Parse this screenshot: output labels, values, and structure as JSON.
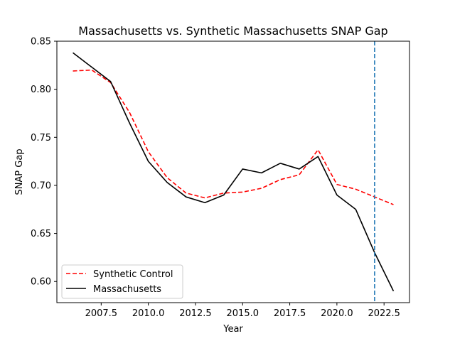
{
  "chart_data": {
    "type": "line",
    "title": "Massachusetts vs. Synthetic Massachusetts SNAP Gap",
    "xlabel": "Year",
    "ylabel": "SNAP Gap",
    "xlim": [
      2005.15,
      2023.85
    ],
    "ylim": [
      0.578,
      0.85
    ],
    "xticks": [
      2007.5,
      2010.0,
      2012.5,
      2015.0,
      2017.5,
      2020.0,
      2022.5
    ],
    "xtick_labels": [
      "2007.5",
      "2010.0",
      "2012.5",
      "2015.0",
      "2017.5",
      "2020.0",
      "2022.5"
    ],
    "yticks": [
      0.6,
      0.65,
      0.7,
      0.75,
      0.8,
      0.85
    ],
    "ytick_labels": [
      "0.60",
      "0.65",
      "0.70",
      "0.75",
      "0.80",
      "0.85"
    ],
    "grid": false,
    "legend_position": "lower-left",
    "vline": {
      "x": 2022,
      "color": "#1f77b4",
      "style": "dashed"
    },
    "x": [
      2006,
      2007,
      2008,
      2009,
      2010,
      2011,
      2012,
      2013,
      2014,
      2015,
      2016,
      2017,
      2018,
      2019,
      2020,
      2021,
      2022,
      2023
    ],
    "series": [
      {
        "name": "Synthetic Control",
        "color": "#ff0000",
        "style": "dashed",
        "values": [
          0.819,
          0.82,
          0.807,
          0.776,
          0.735,
          0.708,
          0.692,
          0.687,
          0.692,
          0.693,
          0.697,
          0.706,
          0.711,
          0.737,
          0.701,
          0.696,
          0.688,
          0.68
        ]
      },
      {
        "name": "Massachusetts",
        "color": "#000000",
        "style": "solid",
        "values": [
          0.838,
          0.823,
          0.808,
          0.765,
          0.725,
          0.703,
          0.688,
          0.682,
          0.69,
          0.717,
          0.713,
          0.723,
          0.717,
          0.73,
          0.69,
          0.675,
          0.63,
          0.59
        ]
      }
    ]
  }
}
